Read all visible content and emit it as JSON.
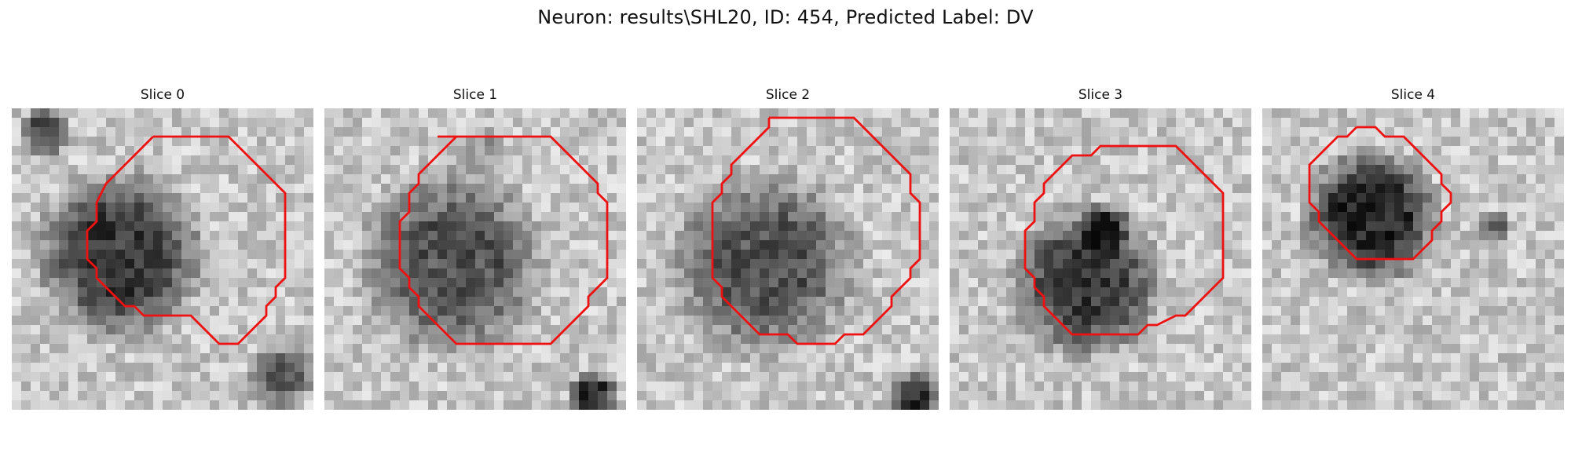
{
  "figure": {
    "title": "Neuron: results\\SHL20, ID: 454, Predicted Label: DV"
  },
  "slices": [
    {
      "label": "Slice 0"
    },
    {
      "label": "Slice 1"
    },
    {
      "label": "Slice 2"
    },
    {
      "label": "Slice 3"
    },
    {
      "label": "Slice 4"
    }
  ],
  "colors": {
    "contour": "#ee1111",
    "background": "#ffffff"
  }
}
